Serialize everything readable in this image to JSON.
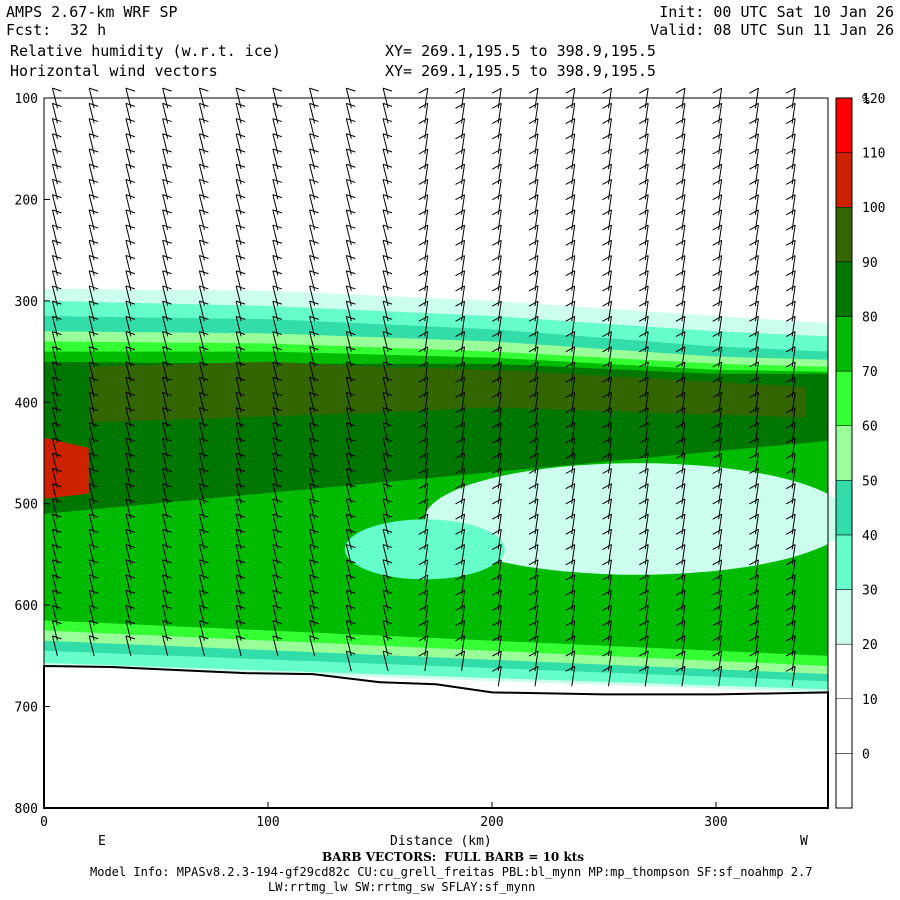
{
  "header": {
    "title_left": "AMPS 2.67-km WRF SP",
    "fcst_label": "Fcst:",
    "fcst_value": "32 h",
    "field_line": "Relative humidity (w.r.t. ice)",
    "wind_line": "Horizontal wind vectors",
    "init_line": "Init: 00 UTC Sat 10 Jan 26",
    "valid_line": "Valid: 08 UTC Sun 11 Jan 26",
    "xy_line_1": "XY= 269.1,195.5 to 398.9,195.5",
    "xy_line_2": "XY= 269.1,195.5 to 398.9,195.5"
  },
  "footer": {
    "barb_note": "BARB VECTORS:  FULL BARB = 10 kts",
    "model_info": "Model Info: MPASv8.2.3-194-gf29cd82c CU:cu_grell_freitas PBL:bl_mynn MP:mp_thompson SF:sf_noahmp 2.7",
    "model_info_2": "LW:rrtmg_lw SW:rrtmg_sw SFLAY:sf_mynn"
  },
  "chart_data": {
    "type": "heatmap",
    "title": "Relative humidity (w.r.t. ice)",
    "subtitle": "Horizontal wind vectors",
    "xlabel": "Distance (km)",
    "ylabel": "",
    "xlim": [
      0,
      350
    ],
    "ylim": [
      800,
      100
    ],
    "x_ticks": [
      0,
      100,
      200,
      300
    ],
    "y_ticks": [
      100,
      200,
      300,
      400,
      500,
      600,
      700,
      800
    ],
    "x_end_labels": {
      "left": "E",
      "right": "W"
    },
    "colorbar": {
      "unit": "%",
      "levels": [
        0,
        10,
        20,
        30,
        40,
        50,
        60,
        70,
        80,
        90,
        100,
        110,
        120
      ],
      "colors": [
        "#ffffff",
        "#ffffff",
        "#ffffff",
        "#ccffee",
        "#66ffcc",
        "#33ddaa",
        "#99ff99",
        "#33ff33",
        "#00bb00",
        "#007700",
        "#336600",
        "#cc2200",
        "#ff0000"
      ]
    },
    "terrain_surface_hpa": [
      [
        0,
        660
      ],
      [
        30,
        661
      ],
      [
        60,
        664
      ],
      [
        90,
        667
      ],
      [
        120,
        668
      ],
      [
        150,
        676
      ],
      [
        175,
        678
      ],
      [
        200,
        686
      ],
      [
        250,
        688
      ],
      [
        300,
        688
      ],
      [
        350,
        686
      ]
    ],
    "rh_bands": [
      {
        "level": 30,
        "top": [
          [
            0,
            288
          ],
          [
            100,
            290
          ],
          [
            200,
            300
          ],
          [
            300,
            315
          ],
          [
            350,
            322
          ]
        ],
        "bottom": [
          [
            0,
            660
          ],
          [
            350,
            686
          ]
        ]
      },
      {
        "level": 40,
        "top": [
          [
            0,
            300
          ],
          [
            100,
            305
          ],
          [
            200,
            315
          ],
          [
            300,
            330
          ],
          [
            350,
            335
          ]
        ],
        "bottom": [
          [
            0,
            657
          ],
          [
            350,
            683
          ]
        ]
      },
      {
        "level": 50,
        "top": [
          [
            0,
            315
          ],
          [
            100,
            318
          ],
          [
            200,
            328
          ],
          [
            300,
            345
          ],
          [
            350,
            350
          ]
        ],
        "bottom": [
          [
            0,
            645
          ],
          [
            350,
            675
          ]
        ]
      },
      {
        "level": 60,
        "top": [
          [
            0,
            330
          ],
          [
            100,
            332
          ],
          [
            200,
            340
          ],
          [
            300,
            355
          ],
          [
            350,
            358
          ]
        ],
        "bottom": [
          [
            0,
            635
          ],
          [
            350,
            668
          ]
        ]
      },
      {
        "level": 70,
        "top": [
          [
            0,
            340
          ],
          [
            100,
            342
          ],
          [
            200,
            350
          ],
          [
            300,
            362
          ],
          [
            350,
            365
          ]
        ],
        "bottom": [
          [
            0,
            625
          ],
          [
            350,
            660
          ]
        ]
      },
      {
        "level": 80,
        "top": [
          [
            0,
            350
          ],
          [
            100,
            350
          ],
          [
            200,
            356
          ],
          [
            300,
            368
          ],
          [
            350,
            370
          ]
        ],
        "bottom": [
          [
            0,
            615
          ],
          [
            350,
            650
          ]
        ]
      },
      {
        "level": 90,
        "top": [
          [
            0,
            360
          ],
          [
            100,
            362
          ],
          [
            200,
            362
          ],
          [
            300,
            372
          ],
          [
            350,
            372
          ]
        ],
        "bottom": [
          [
            0,
            510
          ],
          [
            350,
            438
          ]
        ]
      },
      {
        "level": 100,
        "top": [
          [
            20,
            365
          ],
          [
            100,
            360
          ],
          [
            150,
            365
          ],
          [
            200,
            368
          ],
          [
            300,
            380
          ],
          [
            340,
            385
          ]
        ],
        "bottom": [
          [
            20,
            420
          ],
          [
            150,
            410
          ],
          [
            200,
            405
          ],
          [
            340,
            415
          ]
        ]
      },
      {
        "level": 110,
        "top": [
          [
            0,
            435
          ],
          [
            20,
            445
          ]
        ],
        "bottom": [
          [
            0,
            495
          ],
          [
            20,
            490
          ]
        ]
      }
    ],
    "dry_pocket": {
      "level": "30-40",
      "region_x": [
        160,
        350
      ],
      "region_p": [
        460,
        570
      ]
    }
  }
}
